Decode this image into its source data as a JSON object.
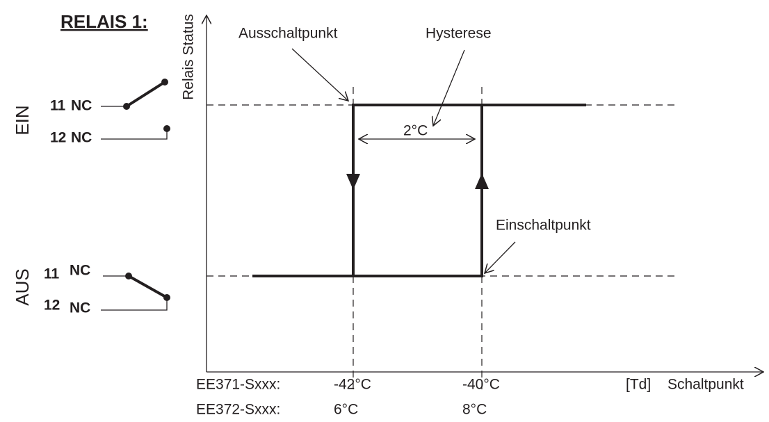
{
  "title": "RELAIS 1:",
  "states": [
    {
      "label": "EIN",
      "contacts": [
        {
          "number": "11",
          "type": "NC"
        },
        {
          "number": "12",
          "type": "NC"
        }
      ]
    },
    {
      "label": "AUS",
      "contacts": [
        {
          "number": "11",
          "type": "NC"
        },
        {
          "number": "12",
          "type": "NC"
        }
      ]
    }
  ],
  "y_axis_label": "Relais Status",
  "annotations": {
    "off_point": "Ausschaltpunkt",
    "hysteresis": "Hysterese",
    "hysteresis_width": "2°C",
    "on_point": "Einschaltpunkt"
  },
  "x_axis": {
    "unit": "[Td]",
    "label": "Schaltpunkt"
  },
  "models": [
    {
      "name": "EE371-Sxxx:",
      "off": "-42°C",
      "on": "-40°C"
    },
    {
      "name": "EE372-Sxxx:",
      "off": "6°C",
      "on": "8°C"
    }
  ]
}
